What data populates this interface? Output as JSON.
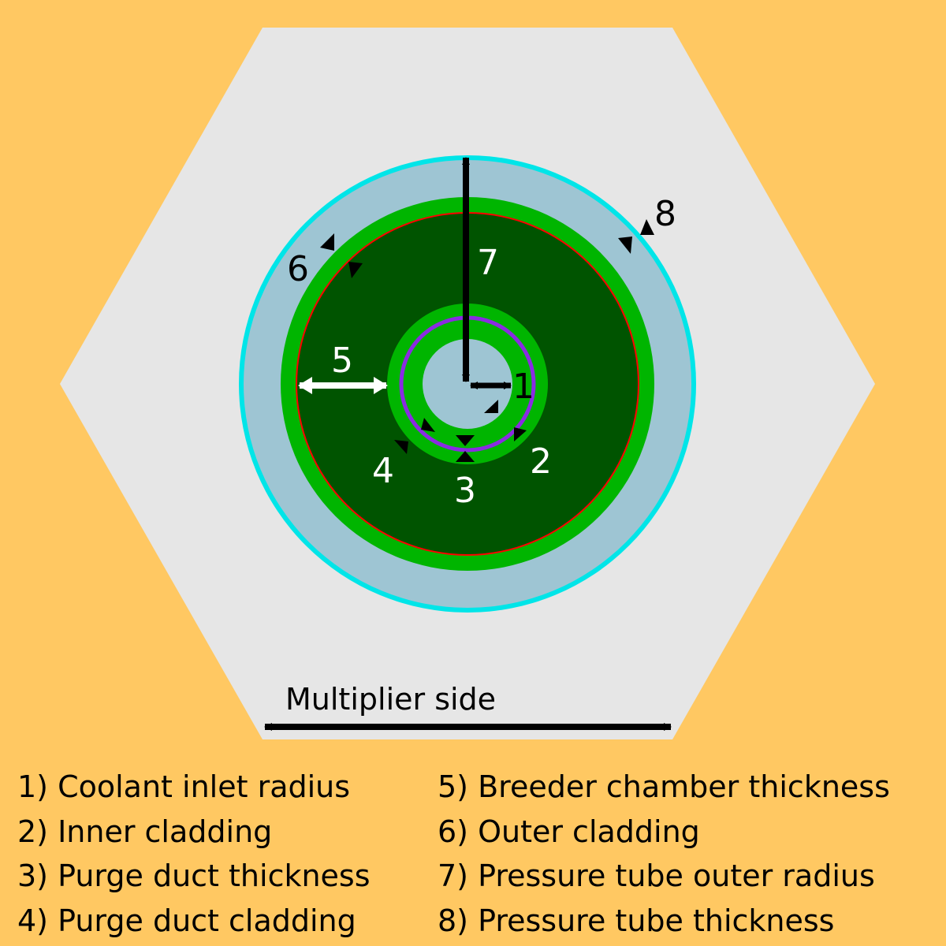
{
  "colors": {
    "background": "#ffc862",
    "multiplier": "#e6e6e6",
    "pressure_tube_outer_edge": "#00e5e8",
    "pressure_tube_gap": "#9ec5d3",
    "cladding": "#00b500",
    "breeder": "#005400",
    "purge_duct": "#8a2be2",
    "coolant_inlet": "#9ec5d3",
    "boundary_line": "#ff0000"
  },
  "labels": {
    "n1": "1",
    "n2": "2",
    "n3": "3",
    "n4": "4",
    "n5": "5",
    "n6": "6",
    "n7": "7",
    "n8": "8",
    "multiplier_side": "Multiplier side"
  },
  "legend": {
    "left": [
      "1) Coolant inlet radius",
      "2) Inner cladding",
      "3) Purge duct thickness",
      "4) Purge duct cladding"
    ],
    "right": [
      "5) Breeder chamber thickness",
      "6) Outer cladding",
      "7) Pressure tube outer radius",
      "8) Pressure tube thickness"
    ]
  }
}
